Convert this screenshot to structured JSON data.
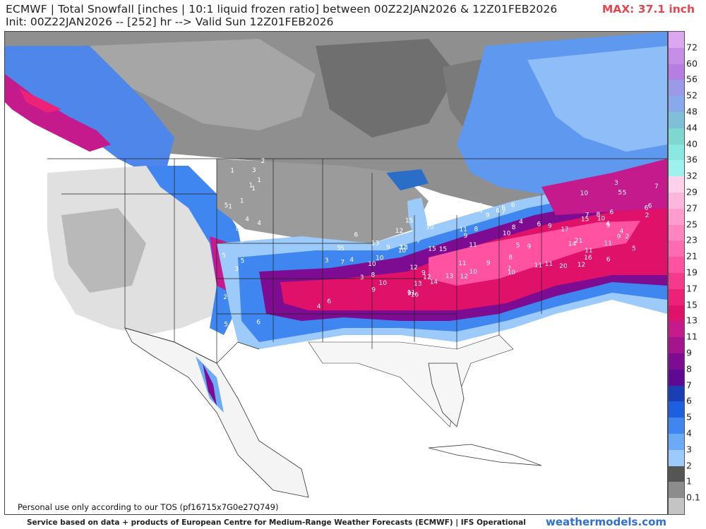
{
  "header": {
    "title_line1": "ECMWF | Total Snowfall [inches | 10:1 liquid frozen ratio] between 00Z22JAN2026 & 12Z01FEB2026",
    "title_line2": "Init: 00Z22JAN2026 -- [252] hr --> Valid Sun 12Z01FEB2026",
    "max_label": "MAX: 37.1 inch"
  },
  "map": {
    "tos_notice": "Personal use only according to our TOS (pf16715x7G0e27Q749)",
    "point_labels": [
      "1",
      "1",
      "1",
      "1",
      "1",
      "1",
      "2",
      "3",
      "4",
      "5",
      "5",
      "6",
      "5",
      "4",
      "3",
      "4",
      "5",
      "8",
      "3",
      "2",
      "3",
      "4",
      "6",
      "5",
      "4",
      "3",
      "5",
      "6",
      "7",
      "8",
      "9",
      "10",
      "9",
      "10",
      "13",
      "12",
      "10",
      "9",
      "13",
      "12",
      "15",
      "11",
      "10",
      "9",
      "11",
      "13",
      "15",
      "16",
      "14",
      "15",
      "12",
      "11",
      "10",
      "11",
      "12",
      "13",
      "14",
      "12",
      "10",
      "9",
      "13",
      "11",
      "9",
      "8",
      "7",
      "6",
      "6",
      "8",
      "10",
      "9",
      "8",
      "10",
      "9",
      "8",
      "7",
      "6",
      "4",
      "5",
      "6",
      "11",
      "9",
      "11",
      "17",
      "21",
      "20",
      "15",
      "14",
      "16",
      "12",
      "11",
      "10",
      "9",
      "8",
      "11",
      "10",
      "9",
      "7",
      "6",
      "5",
      "5",
      "4",
      "3",
      "2",
      "6",
      "4",
      "2",
      "5",
      "6",
      "7",
      "6"
    ]
  },
  "colorbar": {
    "ticks": [
      "72",
      "60",
      "56",
      "52",
      "48",
      "44",
      "40",
      "36",
      "32",
      "29",
      "27",
      "25",
      "23",
      "21",
      "19",
      "17",
      "15",
      "13",
      "11",
      "9",
      "8",
      "7",
      "6",
      "5",
      "4",
      "3",
      "2",
      "1",
      "0.1"
    ],
    "colors": [
      "#dca6f0",
      "#c78ee8",
      "#b57ee0",
      "#9a9ae8",
      "#8aa8ec",
      "#7ec0d8",
      "#7fd8cf",
      "#89e8df",
      "#9ef2ee",
      "#ffd1ea",
      "#ffb6dc",
      "#ff9ccd",
      "#ff84c0",
      "#ff6bb1",
      "#ff52a0",
      "#f5398d",
      "#ec2278",
      "#e01168",
      "#c41a8c",
      "#a5148e",
      "#7d0c92",
      "#5e0894",
      "#1a3fb5",
      "#1e5fdf",
      "#3f86f0",
      "#6aaaf7",
      "#9ccafb",
      "#555555",
      "#8c8c8c",
      "#c4c4c4"
    ]
  },
  "footer": {
    "attribution": "Service based on data + products of European Centre for Medium-Range Weather Forecasts (ECMWF) | IFS Operational",
    "site": "weathermodels.com"
  }
}
